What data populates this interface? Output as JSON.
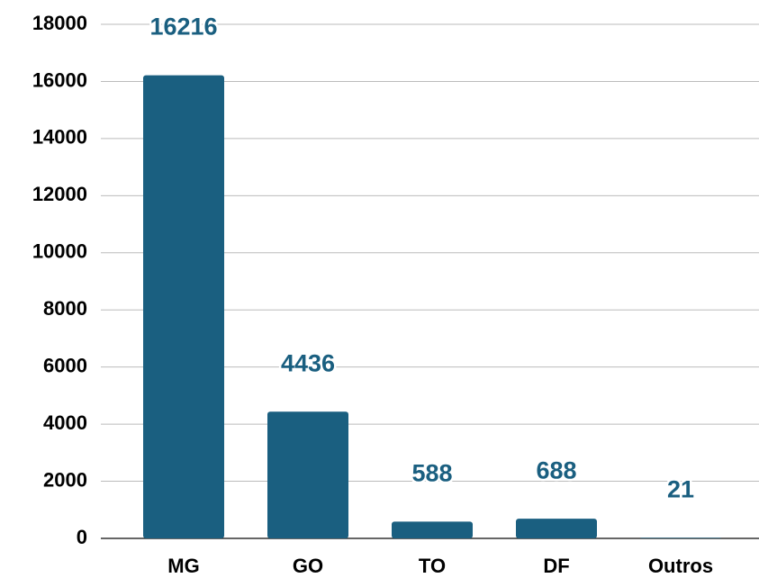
{
  "chart_data": {
    "type": "bar",
    "categories": [
      "MG",
      "GO",
      "TO",
      "DF",
      "Outros"
    ],
    "values": [
      16216,
      4436,
      588,
      688,
      21
    ],
    "color": "#1a5f80",
    "ylim": [
      0,
      18000
    ],
    "yticks": [
      0,
      2000,
      4000,
      6000,
      8000,
      10000,
      12000,
      14000,
      16000,
      18000
    ],
    "grid": true
  }
}
